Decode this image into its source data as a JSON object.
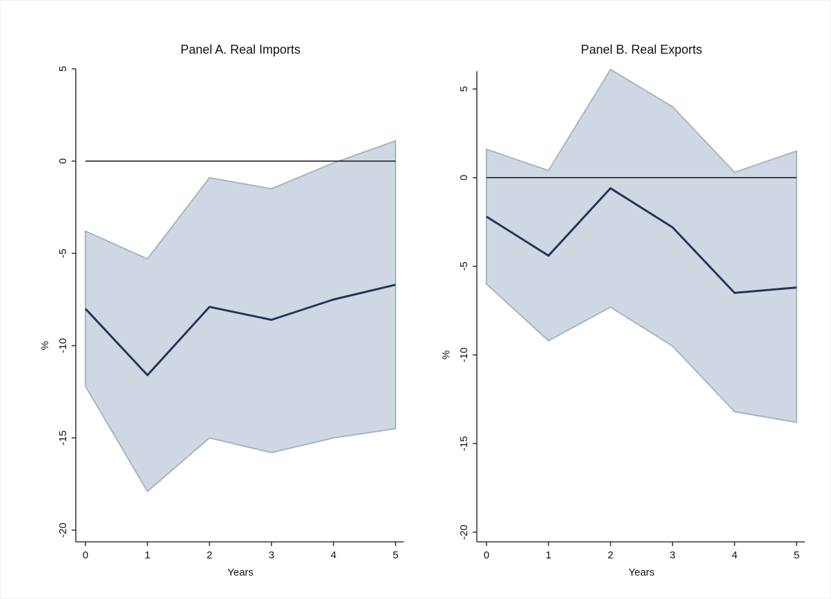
{
  "chart_data": [
    {
      "type": "area",
      "title": "Panel A. Real Imports",
      "xlabel": "Years",
      "ylabel": "%",
      "x": [
        0,
        1,
        2,
        3,
        4,
        5
      ],
      "xticks": [
        "0",
        "1",
        "2",
        "3",
        "4",
        "5"
      ],
      "yticks": [
        "5",
        "0",
        "-5",
        "-10",
        "-15",
        "-20"
      ],
      "ylim": [
        -20,
        5
      ],
      "xlim": [
        0,
        5
      ],
      "zero_line": 0,
      "series": [
        {
          "role": "estimate",
          "values": [
            -8.0,
            -11.6,
            -7.9,
            -8.6,
            -7.5,
            -6.7
          ]
        },
        {
          "role": "upper_bound",
          "values": [
            -3.8,
            -5.3,
            -0.9,
            -1.5,
            -0.1,
            1.1
          ]
        },
        {
          "role": "lower_bound",
          "values": [
            -12.2,
            -17.9,
            -15.0,
            -15.8,
            -15.0,
            -14.5
          ]
        }
      ],
      "colors": {
        "band": "#cfd8e2",
        "band_edge": "#a6b5c4",
        "line": "#24335a",
        "zero_line": "#111111"
      },
      "grid": false
    },
    {
      "type": "area",
      "title": "Panel B. Real Exports",
      "xlabel": "Years",
      "ylabel": "%",
      "x": [
        0,
        1,
        2,
        3,
        4,
        5
      ],
      "xticks": [
        "0",
        "1",
        "2",
        "3",
        "4",
        "5"
      ],
      "yticks": [
        "5",
        "0",
        "-5",
        "-10",
        "-15",
        "-20"
      ],
      "ylim": [
        -20,
        6
      ],
      "xlim": [
        0,
        5
      ],
      "zero_line": 0,
      "series": [
        {
          "role": "estimate",
          "values": [
            -2.2,
            -4.4,
            -0.6,
            -2.8,
            -6.5,
            -6.2
          ]
        },
        {
          "role": "upper_bound",
          "values": [
            1.6,
            0.4,
            6.1,
            4.0,
            0.3,
            1.5
          ]
        },
        {
          "role": "lower_bound",
          "values": [
            -6.0,
            -9.2,
            -7.3,
            -9.5,
            -13.2,
            -13.8
          ]
        }
      ],
      "colors": {
        "band": "#cfd8e2",
        "band_edge": "#a6b5c4",
        "line": "#24335a",
        "zero_line": "#111111"
      },
      "grid": false
    }
  ]
}
